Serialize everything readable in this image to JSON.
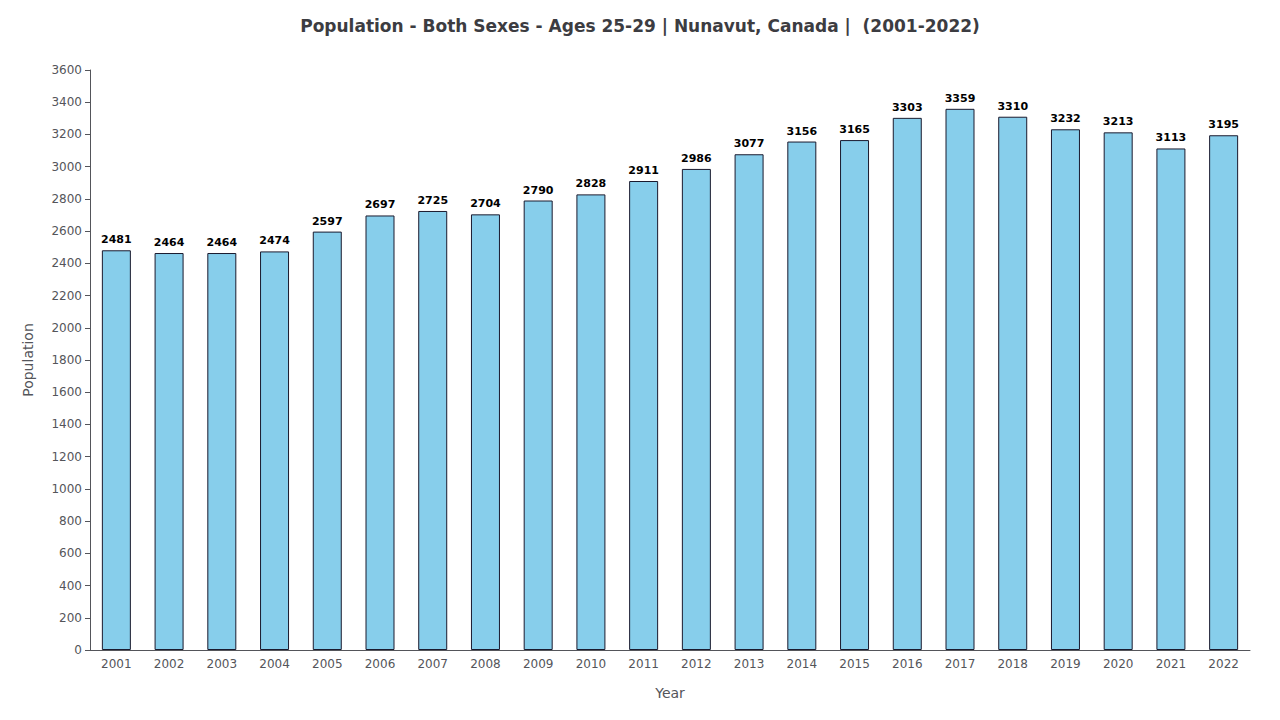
{
  "chart_data": {
    "type": "bar",
    "title": "Population - Both Sexes - Ages 25-29 | Nunavut, Canada |  (2001-2022)",
    "x_label": "Year",
    "y_label": "Population",
    "categories": [
      "2001",
      "2002",
      "2003",
      "2004",
      "2005",
      "2006",
      "2007",
      "2008",
      "2009",
      "2010",
      "2011",
      "2012",
      "2013",
      "2014",
      "2015",
      "2016",
      "2017",
      "2018",
      "2019",
      "2020",
      "2021",
      "2022"
    ],
    "values": [
      2481,
      2464,
      2464,
      2474,
      2597,
      2697,
      2725,
      2704,
      2790,
      2828,
      2911,
      2986,
      3077,
      3156,
      3165,
      3303,
      3359,
      3310,
      3232,
      3213,
      3113,
      3195
    ],
    "color": "#87CEEB",
    "ylim": [
      0,
      3600
    ],
    "yticks": [
      0,
      200,
      400,
      600,
      800,
      1000,
      1200,
      1400,
      1600,
      1800,
      2000,
      2200,
      2400,
      2600,
      2800,
      3000,
      3200,
      3400,
      3600
    ],
    "grid": false,
    "data_labels": true
  }
}
